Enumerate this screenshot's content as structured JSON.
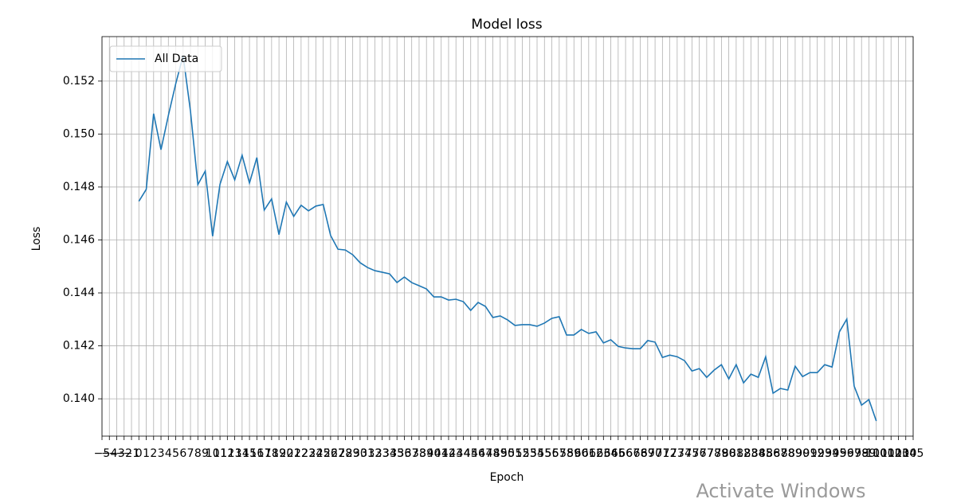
{
  "chart_data": {
    "type": "line",
    "title": "Model loss",
    "xlabel": "Epoch",
    "ylabel": "Loss",
    "x": [
      0,
      1,
      2,
      3,
      4,
      5,
      6,
      7,
      8,
      9,
      10,
      11,
      12,
      13,
      14,
      15,
      16,
      17,
      18,
      19,
      20,
      21,
      22,
      23,
      24,
      25,
      26,
      27,
      28,
      29,
      30,
      31,
      32,
      33,
      34,
      35,
      36,
      37,
      38,
      39,
      40,
      41,
      42,
      43,
      44,
      45,
      46,
      47,
      48,
      49,
      50,
      51,
      52,
      53,
      54,
      55,
      56,
      57,
      58,
      59,
      60,
      61,
      62,
      63,
      64,
      65,
      66,
      67,
      68,
      69,
      70,
      71,
      72,
      73,
      74,
      75,
      76,
      77,
      78,
      79,
      80,
      81,
      82,
      83,
      84,
      85,
      86,
      87,
      88,
      89,
      90,
      91,
      92,
      93,
      94,
      95,
      96,
      97,
      98,
      99,
      100
    ],
    "series": [
      {
        "name": "All Data",
        "color": "#1f77b4",
        "values": [
          0.14746,
          0.14791,
          0.15077,
          0.14941,
          0.1507,
          0.1519,
          0.15296,
          0.15086,
          0.14809,
          0.1486,
          0.14614,
          0.1481,
          0.14896,
          0.14827,
          0.1492,
          0.14815,
          0.14911,
          0.14713,
          0.14755,
          0.1462,
          0.14743,
          0.14689,
          0.14731,
          0.1471,
          0.14728,
          0.14734,
          0.14617,
          0.14565,
          0.14562,
          0.14544,
          0.14514,
          0.14496,
          0.14484,
          0.14478,
          0.14472,
          0.14439,
          0.1446,
          0.14439,
          0.14427,
          0.14415,
          0.14385,
          0.14385,
          0.14373,
          0.14376,
          0.14367,
          0.14334,
          0.14364,
          0.14349,
          0.14307,
          0.14313,
          0.14298,
          0.14277,
          0.1428,
          0.1428,
          0.14274,
          0.14286,
          0.14304,
          0.1431,
          0.14241,
          0.14241,
          0.14262,
          0.14247,
          0.14253,
          0.14211,
          0.14223,
          0.14198,
          0.14192,
          0.14189,
          0.14189,
          0.1422,
          0.14214,
          0.14156,
          0.14165,
          0.14159,
          0.14144,
          0.14105,
          0.14114,
          0.14081,
          0.14108,
          0.14129,
          0.14075,
          0.14129,
          0.1406,
          0.14093,
          0.14081,
          0.14159,
          0.14021,
          0.14039,
          0.14033,
          0.14123,
          0.14084,
          0.14099,
          0.14099,
          0.14129,
          0.1412,
          0.14253,
          0.14301,
          0.14048,
          0.13976,
          0.13997,
          0.13916
        ]
      }
    ],
    "xlim": [
      -5,
      105
    ],
    "ylim": [
      0.13859,
      0.15368
    ],
    "xticks": [
      {
        "value": -5,
        "label": "−5"
      },
      {
        "value": -4,
        "label": "−4"
      },
      {
        "value": -3,
        "label": "−3"
      },
      {
        "value": -2,
        "label": "−2"
      },
      {
        "value": -1,
        "label": "−1"
      },
      0,
      1,
      2,
      3,
      4,
      5,
      6,
      7,
      8,
      9,
      10,
      11,
      12,
      13,
      14,
      15,
      16,
      17,
      18,
      19,
      20,
      21,
      22,
      23,
      24,
      25,
      26,
      27,
      28,
      29,
      30,
      31,
      32,
      33,
      34,
      35,
      36,
      37,
      38,
      39,
      40,
      41,
      42,
      43,
      44,
      45,
      46,
      47,
      48,
      49,
      50,
      51,
      52,
      53,
      54,
      55,
      56,
      57,
      58,
      59,
      60,
      61,
      62,
      63,
      64,
      65,
      66,
      67,
      68,
      69,
      70,
      71,
      72,
      73,
      74,
      75,
      76,
      77,
      78,
      79,
      80,
      81,
      82,
      83,
      84,
      85,
      86,
      87,
      88,
      89,
      90,
      91,
      92,
      93,
      94,
      95,
      96,
      97,
      98,
      99,
      100,
      101,
      102,
      103,
      104,
      105
    ],
    "yticks": [
      {
        "value": 0.14,
        "label": "0.140"
      },
      0.142,
      0.144,
      0.146,
      0.148,
      {
        "value": 0.15,
        "label": "0.150"
      },
      0.152
    ],
    "grid": true,
    "legend": "upper left"
  },
  "watermark": "Activate Windows"
}
